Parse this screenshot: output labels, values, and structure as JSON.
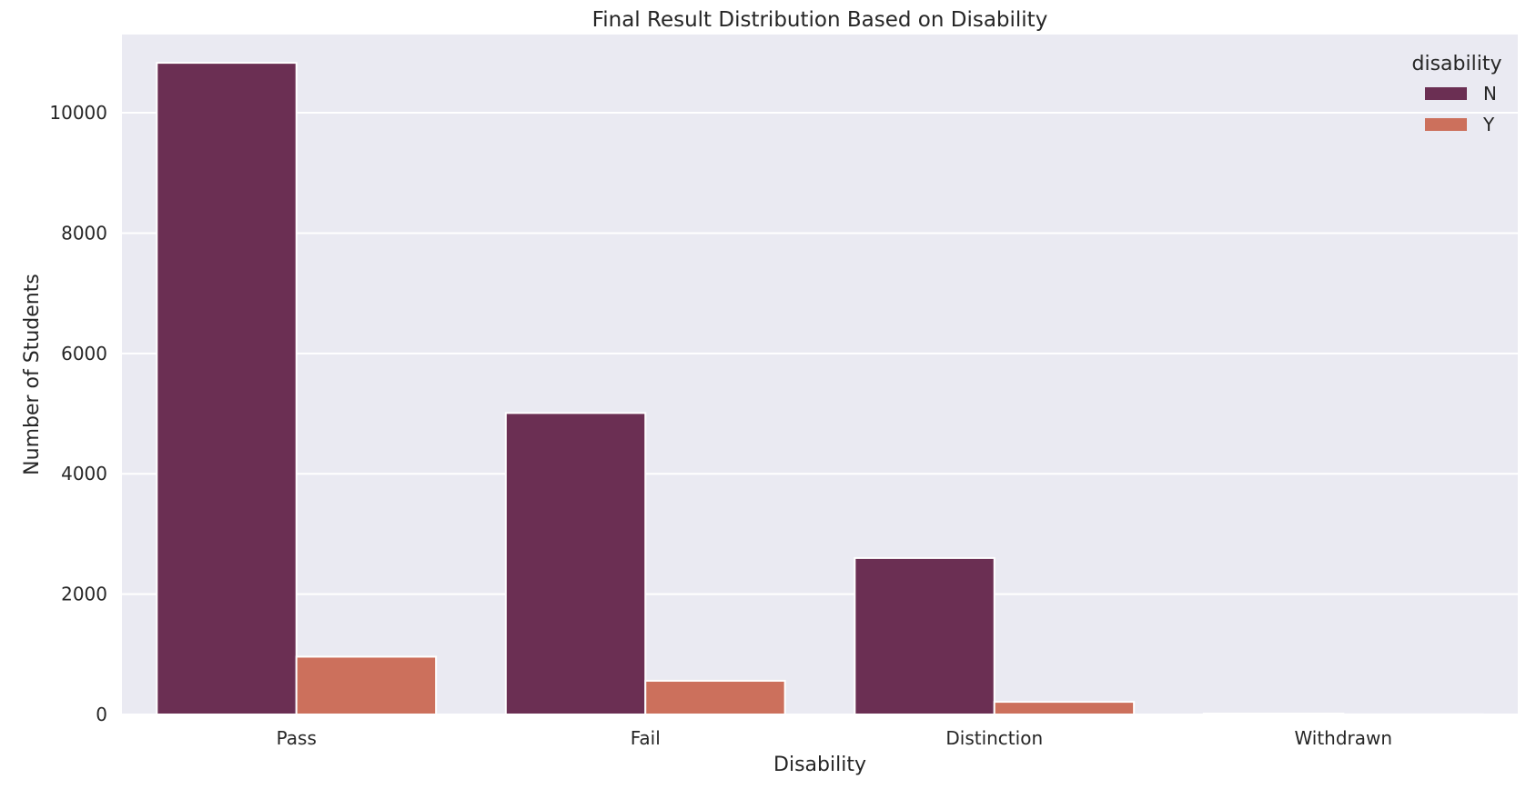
{
  "chart_data": {
    "type": "bar",
    "title": "Final Result Distribution Based on Disability",
    "xlabel": "Disability",
    "ylabel": "Number of Students",
    "categories": [
      "Pass",
      "Fail",
      "Distinction",
      "Withdrawn"
    ],
    "series": [
      {
        "name": "N",
        "values": [
          10830,
          5010,
          2600,
          15
        ]
      },
      {
        "name": "Y",
        "values": [
          960,
          560,
          210,
          3
        ]
      }
    ],
    "ylim": [
      0,
      11300
    ],
    "yticks": [
      0,
      2000,
      4000,
      6000,
      8000,
      10000
    ],
    "grid": true,
    "legend": {
      "title": "disability",
      "placement": "top-right"
    },
    "colors": {
      "N": "#6b2f53",
      "Y": "#cc705c",
      "plot_background": "#eaeaf2",
      "grid": "#ffffff",
      "bar_edge": "#ffffff"
    }
  }
}
